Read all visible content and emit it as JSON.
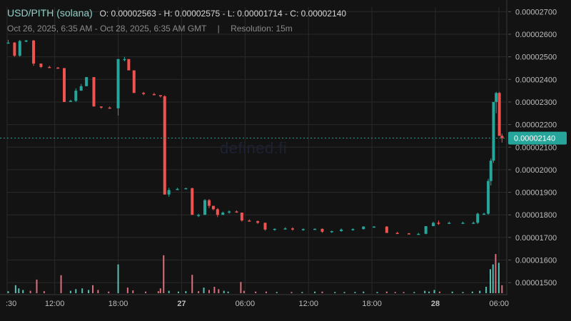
{
  "header": {
    "pair": "USD/PITH (solana)",
    "ohlc": "O: 0.00002563 - H: 0.00002575 - L: 0.00001714 - C: 0.00002140",
    "range": "Oct 26, 2025, 6:35 AM - Oct 28, 2025, 6:35 AM GMT",
    "separator": "|",
    "resolution": "Resolution: 15m"
  },
  "watermark": "defined.fi",
  "colors": {
    "background": "#131313",
    "up": "#26a69a",
    "down": "#ef5350",
    "grid": "#2a2a2a",
    "axis_text": "#bdbdbd",
    "price_tag": "#26a69a"
  },
  "chart_data": {
    "type": "candlestick",
    "title": "USD/PITH (solana)",
    "xlabel": "",
    "ylabel": "",
    "ylim": [
      1.45e-05,
      2.72e-05
    ],
    "current_price": 2.14e-05,
    "current_price_label": "0.00002140",
    "y_ticks": [
      {
        "v": 1.5e-05,
        "label": "0.00001500"
      },
      {
        "v": 1.6e-05,
        "label": "0.00001600"
      },
      {
        "v": 1.7e-05,
        "label": "0.00001700"
      },
      {
        "v": 1.8e-05,
        "label": "0.00001800"
      },
      {
        "v": 1.9e-05,
        "label": "0.00001900"
      },
      {
        "v": 2e-05,
        "label": "0.00002000"
      },
      {
        "v": 2.1e-05,
        "label": "0.00002100"
      },
      {
        "v": 2.2e-05,
        "label": "0.00002200"
      },
      {
        "v": 2.3e-05,
        "label": "0.00002300"
      },
      {
        "v": 2.4e-05,
        "label": "0.00002400"
      },
      {
        "v": 2.5e-05,
        "label": "0.00002500"
      },
      {
        "v": 2.6e-05,
        "label": "0.00002600"
      },
      {
        "v": 2.7e-05,
        "label": "0.00002700"
      }
    ],
    "x_range_hours": [
      7.5,
      54.75
    ],
    "x_ticks": [
      {
        "h": 7.5,
        "label": ":30",
        "bold": false
      },
      {
        "h": 12,
        "label": "12:00",
        "bold": false
      },
      {
        "h": 18,
        "label": "18:00",
        "bold": false
      },
      {
        "h": 24,
        "label": "27",
        "bold": true
      },
      {
        "h": 30,
        "label": "06:00",
        "bold": false
      },
      {
        "h": 36,
        "label": "12:00",
        "bold": false
      },
      {
        "h": 42,
        "label": "18:00",
        "bold": false
      },
      {
        "h": 48,
        "label": "28",
        "bold": true
      },
      {
        "h": 54,
        "label": "06:00",
        "bold": false
      }
    ],
    "candles": [
      {
        "h": 7.6,
        "o": 2.563,
        "hi": 2.575,
        "l": 2.56,
        "c": 2.563
      },
      {
        "h": 8.2,
        "o": 2.563,
        "hi": 2.565,
        "l": 2.5,
        "c": 2.505
      },
      {
        "h": 8.7,
        "o": 2.505,
        "hi": 2.575,
        "l": 2.5,
        "c": 2.57
      },
      {
        "h": 9.3,
        "o": 2.57,
        "hi": 2.575,
        "l": 2.565,
        "c": 2.572
      },
      {
        "h": 10.0,
        "o": 2.572,
        "hi": 2.575,
        "l": 2.46,
        "c": 2.47
      },
      {
        "h": 10.7,
        "o": 2.47,
        "hi": 2.47,
        "l": 2.45,
        "c": 2.455
      },
      {
        "h": 11.5,
        "o": 2.455,
        "hi": 2.46,
        "l": 2.45,
        "c": 2.452
      },
      {
        "h": 12.3,
        "o": 2.452,
        "hi": 2.455,
        "l": 2.45,
        "c": 2.45
      },
      {
        "h": 12.9,
        "o": 2.45,
        "hi": 2.45,
        "l": 2.3,
        "c": 2.3
      },
      {
        "h": 13.5,
        "o": 2.3,
        "hi": 2.31,
        "l": 2.3,
        "c": 2.305
      },
      {
        "h": 14.0,
        "o": 2.305,
        "hi": 2.36,
        "l": 2.3,
        "c": 2.35
      },
      {
        "h": 14.5,
        "o": 2.35,
        "hi": 2.38,
        "l": 2.35,
        "c": 2.37
      },
      {
        "h": 15.0,
        "o": 2.37,
        "hi": 2.41,
        "l": 2.37,
        "c": 2.41
      },
      {
        "h": 15.7,
        "o": 2.41,
        "hi": 2.41,
        "l": 2.28,
        "c": 2.28
      },
      {
        "h": 16.4,
        "o": 2.28,
        "hi": 2.28,
        "l": 2.27,
        "c": 2.275
      },
      {
        "h": 17.2,
        "o": 2.275,
        "hi": 2.28,
        "l": 2.27,
        "c": 2.272
      },
      {
        "h": 18.0,
        "o": 2.272,
        "hi": 2.49,
        "l": 2.24,
        "c": 2.49
      },
      {
        "h": 18.6,
        "o": 2.49,
        "hi": 2.5,
        "l": 2.48,
        "c": 2.49
      },
      {
        "h": 19.0,
        "o": 2.49,
        "hi": 2.49,
        "l": 2.44,
        "c": 2.44
      },
      {
        "h": 19.5,
        "o": 2.44,
        "hi": 2.44,
        "l": 2.34,
        "c": 2.34
      },
      {
        "h": 20.4,
        "o": 2.34,
        "hi": 2.345,
        "l": 2.33,
        "c": 2.335
      },
      {
        "h": 21.4,
        "o": 2.335,
        "hi": 2.34,
        "l": 2.33,
        "c": 2.33
      },
      {
        "h": 22.0,
        "o": 2.33,
        "hi": 2.33,
        "l": 2.32,
        "c": 2.325
      },
      {
        "h": 22.4,
        "o": 2.325,
        "hi": 2.33,
        "l": 1.89,
        "c": 1.89
      },
      {
        "h": 22.8,
        "o": 1.89,
        "hi": 1.92,
        "l": 1.88,
        "c": 1.91
      },
      {
        "h": 23.6,
        "o": 1.91,
        "hi": 1.92,
        "l": 1.91,
        "c": 1.915
      },
      {
        "h": 24.4,
        "o": 1.915,
        "hi": 1.92,
        "l": 1.915,
        "c": 1.918
      },
      {
        "h": 25.0,
        "o": 1.918,
        "hi": 1.92,
        "l": 1.8,
        "c": 1.8
      },
      {
        "h": 25.6,
        "o": 1.8,
        "hi": 1.805,
        "l": 1.79,
        "c": 1.8
      },
      {
        "h": 26.2,
        "o": 1.8,
        "hi": 1.87,
        "l": 1.8,
        "c": 1.865
      },
      {
        "h": 26.6,
        "o": 1.865,
        "hi": 1.87,
        "l": 1.83,
        "c": 1.84
      },
      {
        "h": 27.0,
        "o": 1.84,
        "hi": 1.84,
        "l": 1.82,
        "c": 1.825
      },
      {
        "h": 27.4,
        "o": 1.825,
        "hi": 1.83,
        "l": 1.79,
        "c": 1.8
      },
      {
        "h": 27.9,
        "o": 1.8,
        "hi": 1.815,
        "l": 1.8,
        "c": 1.81
      },
      {
        "h": 28.5,
        "o": 1.81,
        "hi": 1.82,
        "l": 1.805,
        "c": 1.815
      },
      {
        "h": 29.2,
        "o": 1.815,
        "hi": 1.82,
        "l": 1.81,
        "c": 1.81
      },
      {
        "h": 29.7,
        "o": 1.81,
        "hi": 1.81,
        "l": 1.77,
        "c": 1.775
      },
      {
        "h": 30.4,
        "o": 1.775,
        "hi": 1.78,
        "l": 1.77,
        "c": 1.772
      },
      {
        "h": 31.2,
        "o": 1.772,
        "hi": 1.775,
        "l": 1.76,
        "c": 1.765
      },
      {
        "h": 31.9,
        "o": 1.765,
        "hi": 1.765,
        "l": 1.73,
        "c": 1.735
      },
      {
        "h": 32.8,
        "o": 1.735,
        "hi": 1.74,
        "l": 1.73,
        "c": 1.738
      },
      {
        "h": 33.8,
        "o": 1.738,
        "hi": 1.745,
        "l": 1.735,
        "c": 1.74
      },
      {
        "h": 34.5,
        "o": 1.74,
        "hi": 1.745,
        "l": 1.73,
        "c": 1.735
      },
      {
        "h": 35.5,
        "o": 1.735,
        "hi": 1.74,
        "l": 1.73,
        "c": 1.737
      },
      {
        "h": 36.6,
        "o": 1.737,
        "hi": 1.74,
        "l": 1.735,
        "c": 1.738
      },
      {
        "h": 37.3,
        "o": 1.738,
        "hi": 1.74,
        "l": 1.72,
        "c": 1.725
      },
      {
        "h": 38.2,
        "o": 1.725,
        "hi": 1.73,
        "l": 1.72,
        "c": 1.728
      },
      {
        "h": 39.1,
        "o": 1.728,
        "hi": 1.74,
        "l": 1.725,
        "c": 1.735
      },
      {
        "h": 40.2,
        "o": 1.735,
        "hi": 1.74,
        "l": 1.73,
        "c": 1.737
      },
      {
        "h": 41.2,
        "o": 1.737,
        "hi": 1.75,
        "l": 1.735,
        "c": 1.748
      },
      {
        "h": 42.2,
        "o": 1.748,
        "hi": 1.75,
        "l": 1.745,
        "c": 1.748
      },
      {
        "h": 43.4,
        "o": 1.748,
        "hi": 1.75,
        "l": 1.72,
        "c": 1.72
      },
      {
        "h": 44.4,
        "o": 1.72,
        "hi": 1.725,
        "l": 1.715,
        "c": 1.718
      },
      {
        "h": 45.5,
        "o": 1.718,
        "hi": 1.72,
        "l": 1.714,
        "c": 1.715
      },
      {
        "h": 46.4,
        "o": 1.715,
        "hi": 1.72,
        "l": 1.714,
        "c": 1.716
      },
      {
        "h": 47.1,
        "o": 1.716,
        "hi": 1.75,
        "l": 1.714,
        "c": 1.75
      },
      {
        "h": 47.8,
        "o": 1.75,
        "hi": 1.77,
        "l": 1.75,
        "c": 1.765
      },
      {
        "h": 48.3,
        "o": 1.765,
        "hi": 1.775,
        "l": 1.755,
        "c": 1.762
      },
      {
        "h": 49.3,
        "o": 1.762,
        "hi": 1.77,
        "l": 1.76,
        "c": 1.765
      },
      {
        "h": 50.6,
        "o": 1.765,
        "hi": 1.77,
        "l": 1.76,
        "c": 1.765
      },
      {
        "h": 51.6,
        "o": 1.765,
        "hi": 1.77,
        "l": 1.76,
        "c": 1.765
      },
      {
        "h": 52.0,
        "o": 1.765,
        "hi": 1.81,
        "l": 1.76,
        "c": 1.805
      },
      {
        "h": 52.6,
        "o": 1.805,
        "hi": 1.81,
        "l": 1.8,
        "c": 1.805
      },
      {
        "h": 53.0,
        "o": 1.805,
        "hi": 1.96,
        "l": 1.8,
        "c": 1.95
      },
      {
        "h": 53.25,
        "o": 1.95,
        "hi": 2.05,
        "l": 1.93,
        "c": 2.04
      },
      {
        "h": 53.5,
        "o": 2.04,
        "hi": 2.3,
        "l": 2.03,
        "c": 2.3
      },
      {
        "h": 53.75,
        "o": 2.3,
        "hi": 2.345,
        "l": 2.25,
        "c": 2.34
      },
      {
        "h": 54.05,
        "o": 2.34,
        "hi": 2.345,
        "l": 2.15,
        "c": 2.15
      },
      {
        "h": 54.3,
        "o": 2.15,
        "hi": 2.16,
        "l": 2.12,
        "c": 2.14
      }
    ],
    "volume": {
      "scale_note": "relative",
      "bars": [
        {
          "h": 7.6,
          "v": 0.05,
          "up": true
        },
        {
          "h": 8.3,
          "v": 0.2,
          "up": true
        },
        {
          "h": 8.6,
          "v": 0.12,
          "up": true
        },
        {
          "h": 9.0,
          "v": 0.08,
          "up": true
        },
        {
          "h": 9.7,
          "v": 0.06,
          "up": false
        },
        {
          "h": 10.3,
          "v": 0.34,
          "up": false
        },
        {
          "h": 11.0,
          "v": 0.05,
          "up": false
        },
        {
          "h": 12.6,
          "v": 0.45,
          "up": false
        },
        {
          "h": 13.5,
          "v": 0.06,
          "up": true
        },
        {
          "h": 14.0,
          "v": 0.1,
          "up": true
        },
        {
          "h": 14.6,
          "v": 0.12,
          "up": true
        },
        {
          "h": 15.2,
          "v": 0.08,
          "up": true
        },
        {
          "h": 15.6,
          "v": 0.2,
          "up": false
        },
        {
          "h": 16.1,
          "v": 0.08,
          "up": false
        },
        {
          "h": 17.1,
          "v": 0.04,
          "up": false
        },
        {
          "h": 18.0,
          "v": 0.72,
          "up": true
        },
        {
          "h": 18.9,
          "v": 0.14,
          "up": false
        },
        {
          "h": 19.4,
          "v": 0.07,
          "up": false
        },
        {
          "h": 20.6,
          "v": 0.04,
          "up": false
        },
        {
          "h": 21.8,
          "v": 0.05,
          "up": false
        },
        {
          "h": 22.0,
          "v": 0.12,
          "up": false
        },
        {
          "h": 22.3,
          "v": 0.95,
          "up": false
        },
        {
          "h": 22.8,
          "v": 0.06,
          "up": true
        },
        {
          "h": 23.7,
          "v": 0.04,
          "up": true
        },
        {
          "h": 24.4,
          "v": 0.05,
          "up": true
        },
        {
          "h": 25.0,
          "v": 0.46,
          "up": false
        },
        {
          "h": 25.6,
          "v": 0.05,
          "up": false
        },
        {
          "h": 26.1,
          "v": 0.14,
          "up": true
        },
        {
          "h": 26.6,
          "v": 0.08,
          "up": false
        },
        {
          "h": 27.1,
          "v": 0.16,
          "up": false
        },
        {
          "h": 27.5,
          "v": 0.1,
          "up": false
        },
        {
          "h": 28.0,
          "v": 0.06,
          "up": true
        },
        {
          "h": 28.4,
          "v": 0.04,
          "up": true
        },
        {
          "h": 29.6,
          "v": 0.28,
          "up": false
        },
        {
          "h": 29.9,
          "v": 0.06,
          "up": false
        },
        {
          "h": 31.0,
          "v": 0.04,
          "up": false
        },
        {
          "h": 32.0,
          "v": 0.04,
          "up": false
        },
        {
          "h": 33.0,
          "v": 0.03,
          "up": true
        },
        {
          "h": 34.4,
          "v": 0.03,
          "up": false
        },
        {
          "h": 35.4,
          "v": 0.03,
          "up": true
        },
        {
          "h": 36.6,
          "v": 0.04,
          "up": true
        },
        {
          "h": 37.3,
          "v": 0.04,
          "up": false
        },
        {
          "h": 38.5,
          "v": 0.03,
          "up": true
        },
        {
          "h": 39.4,
          "v": 0.03,
          "up": true
        },
        {
          "h": 40.4,
          "v": 0.03,
          "up": true
        },
        {
          "h": 41.2,
          "v": 0.04,
          "up": true
        },
        {
          "h": 42.5,
          "v": 0.03,
          "up": true
        },
        {
          "h": 43.4,
          "v": 0.04,
          "up": false
        },
        {
          "h": 44.2,
          "v": 0.03,
          "up": false
        },
        {
          "h": 45.0,
          "v": 0.03,
          "up": false
        },
        {
          "h": 46.0,
          "v": 0.03,
          "up": true
        },
        {
          "h": 47.0,
          "v": 0.06,
          "up": true
        },
        {
          "h": 47.4,
          "v": 0.04,
          "up": true
        },
        {
          "h": 47.9,
          "v": 0.08,
          "up": true
        },
        {
          "h": 48.4,
          "v": 0.04,
          "up": false
        },
        {
          "h": 49.6,
          "v": 0.04,
          "up": true
        },
        {
          "h": 50.6,
          "v": 0.03,
          "up": true
        },
        {
          "h": 51.5,
          "v": 0.04,
          "up": true
        },
        {
          "h": 52.2,
          "v": 0.06,
          "up": true
        },
        {
          "h": 52.8,
          "v": 0.16,
          "up": true
        },
        {
          "h": 53.2,
          "v": 0.6,
          "up": true
        },
        {
          "h": 53.45,
          "v": 0.72,
          "up": true
        },
        {
          "h": 53.7,
          "v": 0.98,
          "up": false
        },
        {
          "h": 54.0,
          "v": 0.76,
          "up": true
        },
        {
          "h": 54.3,
          "v": 0.2,
          "up": false
        }
      ]
    }
  }
}
